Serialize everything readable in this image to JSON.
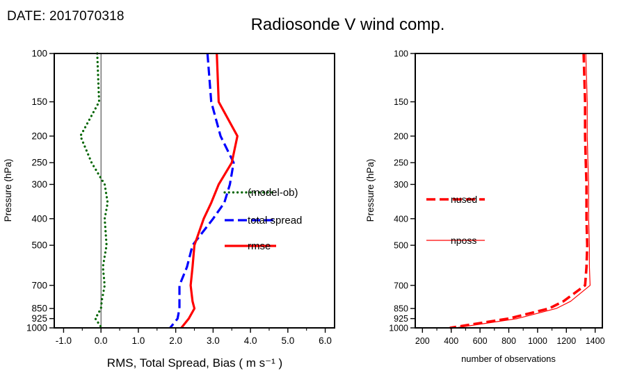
{
  "header": {
    "date": "DATE: 2017070318",
    "title": "Radiosonde V wind comp."
  },
  "chart_data": [
    {
      "type": "line",
      "panel": "left",
      "xlabel": "RMS, Total Spread, Bias ( m s⁻¹ )",
      "ylabel": "Pressure (hPa)",
      "xlim": [
        -1.25,
        6.25
      ],
      "xticks": [
        -1.0,
        0.0,
        1.0,
        2.0,
        3.0,
        4.0,
        5.0,
        6.0
      ],
      "xtick_labels": [
        "-1.0",
        "0.0",
        "1.0",
        "2.0",
        "3.0",
        "4.0",
        "5.0",
        "6.0"
      ],
      "xminor_step": 0.5,
      "yscale": "log",
      "y_inverted": true,
      "ylim": [
        100,
        1000
      ],
      "yticks": [
        100,
        150,
        200,
        250,
        300,
        400,
        500,
        700,
        850,
        925,
        1000
      ],
      "ytick_labels": [
        "100",
        "150",
        "200",
        "250",
        "300",
        "400",
        "500",
        "700",
        "850",
        "925",
        "1000"
      ],
      "ref_line_x": 0.0,
      "levels_hpa": [
        100,
        150,
        200,
        250,
        300,
        350,
        400,
        500,
        600,
        700,
        800,
        850,
        925,
        1000
      ],
      "series": [
        {
          "name": "(model-ob)",
          "color": "#006400",
          "line_style": "dotted",
          "line_width": 3.2,
          "values": [
            -0.1,
            -0.05,
            -0.55,
            -0.25,
            0.1,
            0.18,
            0.1,
            0.15,
            0.05,
            0.1,
            0.02,
            0.0,
            -0.15,
            0.02
          ]
        },
        {
          "name": "total spread",
          "color": "#0000ff",
          "line_style": "dashed",
          "line_width": 3.2,
          "values": [
            2.85,
            2.95,
            3.2,
            3.55,
            3.45,
            3.3,
            3.0,
            2.45,
            2.3,
            2.1,
            2.1,
            2.1,
            2.05,
            1.85
          ]
        },
        {
          "name": "rmse",
          "color": "#ff0000",
          "line_style": "solid",
          "line_width": 3.2,
          "values": [
            3.1,
            3.15,
            3.65,
            3.5,
            3.15,
            2.95,
            2.75,
            2.5,
            2.45,
            2.4,
            2.45,
            2.5,
            2.35,
            2.15
          ]
        }
      ],
      "legend": [
        "(model-ob)",
        "total spread",
        "rmse"
      ]
    },
    {
      "type": "line",
      "panel": "right",
      "xlabel": "number of observations",
      "ylabel": "Pressure (hPa)",
      "xlim": [
        150,
        1450
      ],
      "xticks": [
        200,
        400,
        600,
        800,
        1000,
        1200,
        1400
      ],
      "xtick_labels": [
        "200",
        "400",
        "600",
        "800",
        "1000",
        "1200",
        "1400"
      ],
      "xminor_step": 100,
      "yscale": "log",
      "y_inverted": true,
      "ylim": [
        100,
        1000
      ],
      "yticks": [
        100,
        150,
        200,
        250,
        300,
        400,
        500,
        700,
        850,
        925,
        1000
      ],
      "ytick_labels": [
        "100",
        "150",
        "200",
        "250",
        "300",
        "400",
        "500",
        "700",
        "850",
        "925",
        "1000"
      ],
      "levels_hpa": [
        100,
        150,
        200,
        250,
        300,
        350,
        400,
        500,
        600,
        700,
        800,
        850,
        925,
        1000
      ],
      "series": [
        {
          "name": "nused",
          "color": "#ff0000",
          "line_style": "dashed",
          "line_width": 3.6,
          "values": [
            1320,
            1330,
            1330,
            1335,
            1340,
            1340,
            1340,
            1345,
            1340,
            1330,
            1180,
            1080,
            800,
            390
          ]
        },
        {
          "name": "nposs",
          "color": "#ff0000",
          "line_style": "solid",
          "line_width": 1.2,
          "values": [
            1335,
            1345,
            1345,
            1350,
            1355,
            1355,
            1355,
            1360,
            1360,
            1365,
            1230,
            1130,
            860,
            430
          ]
        }
      ],
      "legend": [
        "nused",
        "nposs"
      ]
    }
  ]
}
